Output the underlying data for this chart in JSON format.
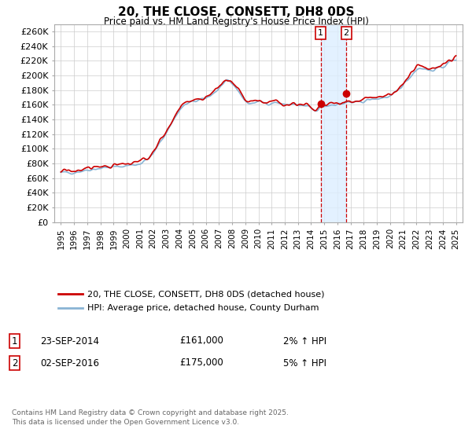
{
  "title": "20, THE CLOSE, CONSETT, DH8 0DS",
  "subtitle": "Price paid vs. HM Land Registry's House Price Index (HPI)",
  "legend_line1": "20, THE CLOSE, CONSETT, DH8 0DS (detached house)",
  "legend_line2": "HPI: Average price, detached house, County Durham",
  "annotation1_label": "1",
  "annotation1_date": "23-SEP-2014",
  "annotation1_price": "£161,000",
  "annotation1_hpi": "2% ↑ HPI",
  "annotation2_label": "2",
  "annotation2_date": "02-SEP-2016",
  "annotation2_price": "£175,000",
  "annotation2_hpi": "5% ↑ HPI",
  "sale1_x": 2014.73,
  "sale1_y": 161000,
  "sale2_x": 2016.67,
  "sale2_y": 175000,
  "ylabel_values": [
    "£0",
    "£20K",
    "£40K",
    "£60K",
    "£80K",
    "£100K",
    "£120K",
    "£140K",
    "£160K",
    "£180K",
    "£200K",
    "£220K",
    "£240K",
    "£260K"
  ],
  "ytick_values": [
    0,
    20000,
    40000,
    60000,
    80000,
    100000,
    120000,
    140000,
    160000,
    180000,
    200000,
    220000,
    240000,
    260000
  ],
  "ylim": [
    0,
    270000
  ],
  "xlim": [
    1994.5,
    2025.5
  ],
  "background_color": "#ffffff",
  "grid_color": "#cccccc",
  "line_red": "#cc0000",
  "line_blue": "#8ab4d4",
  "shade_color": "#ddeeff",
  "footer_text": "Contains HM Land Registry data © Crown copyright and database right 2025.\nThis data is licensed under the Open Government Licence v3.0.",
  "xtick_years": [
    1995,
    1996,
    1997,
    1998,
    1999,
    2000,
    2001,
    2002,
    2003,
    2004,
    2005,
    2006,
    2007,
    2008,
    2009,
    2010,
    2011,
    2012,
    2013,
    2014,
    2015,
    2016,
    2017,
    2018,
    2019,
    2020,
    2021,
    2022,
    2023,
    2024,
    2025
  ]
}
